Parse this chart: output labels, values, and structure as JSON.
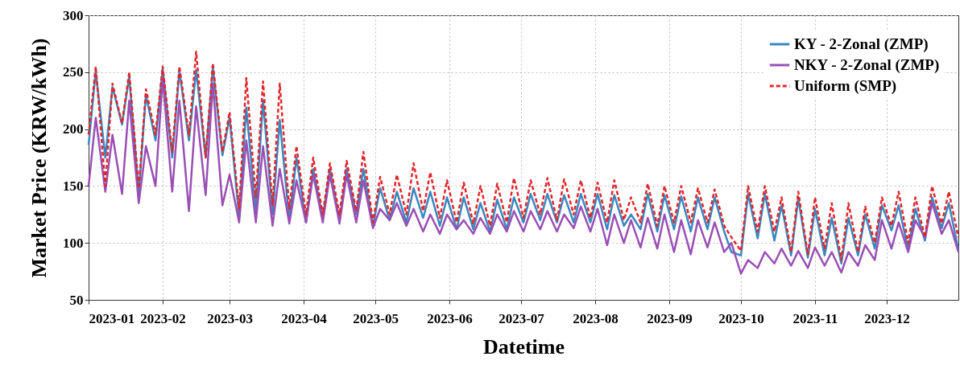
{
  "chart_data": {
    "type": "line",
    "xlabel": "Datetime",
    "ylabel": "Market Price (KRW/kWh)",
    "x": [
      "2023-01-01",
      "2023-01-04",
      "2023-01-08",
      "2023-01-11",
      "2023-01-15",
      "2023-01-18",
      "2023-01-22",
      "2023-01-25",
      "2023-01-29",
      "2023-02-01",
      "2023-02-05",
      "2023-02-08",
      "2023-02-12",
      "2023-02-15",
      "2023-02-19",
      "2023-02-22",
      "2023-02-26",
      "2023-03-01",
      "2023-03-05",
      "2023-03-08",
      "2023-03-12",
      "2023-03-15",
      "2023-03-19",
      "2023-03-22",
      "2023-03-26",
      "2023-03-29",
      "2023-04-02",
      "2023-04-05",
      "2023-04-09",
      "2023-04-12",
      "2023-04-16",
      "2023-04-19",
      "2023-04-23",
      "2023-04-26",
      "2023-04-30",
      "2023-05-03",
      "2023-05-07",
      "2023-05-10",
      "2023-05-14",
      "2023-05-17",
      "2023-05-21",
      "2023-05-24",
      "2023-05-28",
      "2023-05-31",
      "2023-06-04",
      "2023-06-07",
      "2023-06-11",
      "2023-06-14",
      "2023-06-18",
      "2023-06-21",
      "2023-06-25",
      "2023-06-28",
      "2023-07-02",
      "2023-07-05",
      "2023-07-09",
      "2023-07-12",
      "2023-07-16",
      "2023-07-19",
      "2023-07-23",
      "2023-07-26",
      "2023-07-30",
      "2023-08-02",
      "2023-08-06",
      "2023-08-09",
      "2023-08-13",
      "2023-08-16",
      "2023-08-20",
      "2023-08-23",
      "2023-08-27",
      "2023-08-30",
      "2023-09-03",
      "2023-09-06",
      "2023-09-10",
      "2023-09-13",
      "2023-09-17",
      "2023-09-20",
      "2023-09-24",
      "2023-09-27",
      "2023-10-01",
      "2023-10-04",
      "2023-10-08",
      "2023-10-11",
      "2023-10-15",
      "2023-10-18",
      "2023-10-22",
      "2023-10-25",
      "2023-10-29",
      "2023-11-01",
      "2023-11-05",
      "2023-11-08",
      "2023-11-12",
      "2023-11-15",
      "2023-11-19",
      "2023-11-22",
      "2023-11-26",
      "2023-11-29",
      "2023-12-03",
      "2023-12-06",
      "2023-12-10",
      "2023-12-13",
      "2023-12-17",
      "2023-12-20",
      "2023-12-24",
      "2023-12-27",
      "2023-12-31"
    ],
    "series": [
      {
        "name": "KY - 2-Zonal (ZMP)",
        "color": "#3a87c0",
        "line_style": "solid",
        "values": [
          186,
          251,
          175,
          237,
          204,
          246,
          144,
          230,
          190,
          253,
          175,
          251,
          190,
          252,
          175,
          254,
          177,
          210,
          123,
          219,
          127,
          225,
          125,
          208,
          120,
          175,
          118,
          165,
          122,
          165,
          120,
          165,
          125,
          165,
          115,
          148,
          120,
          145,
          118,
          148,
          122,
          145,
          115,
          140,
          112,
          140,
          112,
          135,
          110,
          138,
          112,
          140,
          118,
          143,
          120,
          143,
          118,
          142,
          118,
          143,
          118,
          143,
          112,
          142,
          115,
          125,
          112,
          143,
          110,
          142,
          112,
          141,
          110,
          140,
          112,
          140,
          110,
          92,
          89,
          143,
          104,
          143,
          102,
          133,
          89,
          139,
          87,
          130,
          89,
          122,
          82,
          122,
          89,
          125,
          95,
          133,
          111,
          133,
          94,
          130,
          102,
          140,
          113,
          135,
          94
        ]
      },
      {
        "name": "NKY - 2-Zonal (ZMP)",
        "color": "#9a4fb5",
        "line_style": "solid",
        "values": [
          150,
          210,
          145,
          195,
          143,
          225,
          135,
          185,
          150,
          245,
          145,
          225,
          128,
          220,
          142,
          240,
          133,
          160,
          118,
          190,
          118,
          185,
          115,
          165,
          117,
          155,
          118,
          160,
          118,
          160,
          117,
          160,
          118,
          155,
          113,
          130,
          120,
          135,
          115,
          130,
          110,
          125,
          108,
          125,
          112,
          120,
          108,
          122,
          108,
          125,
          110,
          128,
          110,
          128,
          112,
          128,
          110,
          125,
          113,
          132,
          110,
          130,
          98,
          125,
          100,
          120,
          96,
          122,
          95,
          125,
          92,
          120,
          90,
          120,
          96,
          118,
          92,
          100,
          73,
          85,
          78,
          92,
          82,
          95,
          80,
          93,
          78,
          96,
          80,
          92,
          74,
          92,
          80,
          98,
          85,
          120,
          95,
          118,
          92,
          120,
          105,
          135,
          108,
          120,
          92
        ]
      },
      {
        "name": "Uniform (SMP)",
        "color": "#e3262b",
        "line_style": "dashed",
        "values": [
          195,
          255,
          150,
          240,
          205,
          250,
          148,
          235,
          195,
          255,
          180,
          255,
          195,
          268,
          175,
          258,
          180,
          215,
          130,
          245,
          140,
          242,
          133,
          240,
          130,
          185,
          125,
          175,
          125,
          170,
          125,
          172,
          128,
          180,
          118,
          158,
          125,
          160,
          125,
          170,
          128,
          162,
          122,
          155,
          118,
          153,
          117,
          150,
          115,
          152,
          118,
          157,
          122,
          155,
          125,
          157,
          120,
          156,
          125,
          155,
          122,
          153,
          118,
          155,
          120,
          140,
          118,
          152,
          115,
          150,
          118,
          150,
          118,
          148,
          118,
          147,
          115,
          105,
          93,
          150,
          110,
          150,
          110,
          140,
          92,
          145,
          90,
          140,
          95,
          135,
          85,
          135,
          92,
          132,
          100,
          140,
          115,
          145,
          100,
          140,
          105,
          150,
          117,
          145,
          105
        ]
      }
    ],
    "xlim": [
      "2023-01-01",
      "2023-12-31"
    ],
    "xticks": [
      {
        "value": "2023-01-01",
        "label": "2023-01"
      },
      {
        "value": "2023-02-01",
        "label": "2023-02"
      },
      {
        "value": "2023-03-01",
        "label": "2023-03"
      },
      {
        "value": "2023-04-01",
        "label": "2023-04"
      },
      {
        "value": "2023-05-01",
        "label": "2023-05"
      },
      {
        "value": "2023-06-01",
        "label": "2023-06"
      },
      {
        "value": "2023-07-01",
        "label": "2023-07"
      },
      {
        "value": "2023-08-01",
        "label": "2023-08"
      },
      {
        "value": "2023-09-01",
        "label": "2023-09"
      },
      {
        "value": "2023-10-01",
        "label": "2023-10"
      },
      {
        "value": "2023-11-01",
        "label": "2023-11"
      },
      {
        "value": "2023-12-01",
        "label": "2023-12"
      }
    ],
    "ylim": [
      50,
      300
    ],
    "yticks": [
      50,
      100,
      150,
      200,
      250,
      300
    ],
    "grid": true,
    "legend": "top right"
  }
}
